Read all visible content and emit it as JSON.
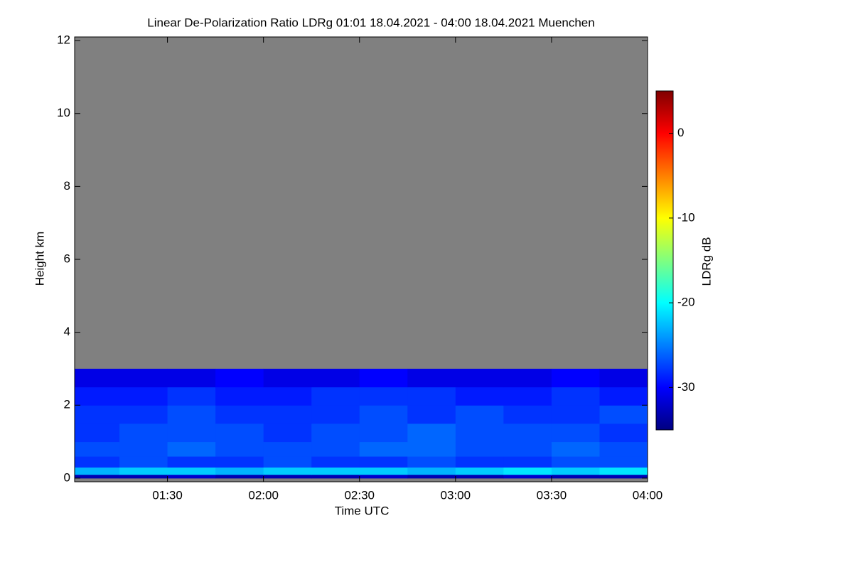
{
  "chart_data": {
    "type": "heatmap",
    "title": "Linear De-Polarization Ratio LDRg   01:01 18.04.2021 - 04:00 18.04.2021 Muenchen",
    "xlabel": "Time UTC",
    "ylabel": "Height km",
    "colorbar_label": "LDRg dB",
    "background": "#808080",
    "xlim": [
      1.0167,
      4.0
    ],
    "xticks": [
      {
        "value": 1.5,
        "label": "01:30"
      },
      {
        "value": 2.0,
        "label": "02:00"
      },
      {
        "value": 2.5,
        "label": "02:30"
      },
      {
        "value": 3.0,
        "label": "03:00"
      },
      {
        "value": 3.5,
        "label": "03:30"
      },
      {
        "value": 4.0,
        "label": "04:00"
      }
    ],
    "ylim": [
      -0.1,
      12.1
    ],
    "yticks": [
      0,
      2,
      4,
      6,
      8,
      10,
      12
    ],
    "clim": [
      -35,
      5
    ],
    "cticks": [
      0,
      -10,
      -20,
      -30
    ],
    "x_edges": [
      1.0167,
      1.25,
      1.5,
      1.75,
      2.0,
      2.25,
      2.5,
      2.75,
      3.0,
      3.25,
      3.5,
      3.75,
      4.0
    ],
    "y_edges": [
      0,
      0.1,
      0.3,
      0.6,
      1.0,
      1.5,
      2.0,
      2.5,
      3.0
    ],
    "z": [
      [
        -33,
        -33,
        -32,
        -33,
        -33,
        -33,
        -32,
        -33,
        -33,
        -32,
        -33,
        -33
      ],
      [
        -23,
        -22,
        -22,
        -23,
        -22,
        -22,
        -22,
        -23,
        -22,
        -21,
        -22,
        -21
      ],
      [
        -28,
        -27,
        -28,
        -28,
        -27,
        -28,
        -28,
        -27,
        -28,
        -28,
        -27,
        -27
      ],
      [
        -27,
        -27,
        -26,
        -27,
        -27,
        -27,
        -26,
        -26,
        -27,
        -27,
        -26,
        -27
      ],
      [
        -28,
        -27,
        -27,
        -27,
        -28,
        -27,
        -27,
        -26,
        -27,
        -27,
        -27,
        -28
      ],
      [
        -28,
        -28,
        -27,
        -28,
        -28,
        -28,
        -27,
        -28,
        -27,
        -28,
        -28,
        -27
      ],
      [
        -29,
        -29,
        -28,
        -29,
        -29,
        -28,
        -28,
        -28,
        -29,
        -29,
        -28,
        -29
      ],
      [
        -31,
        -31,
        -31,
        -30,
        -31,
        -31,
        -30,
        -31,
        -31,
        -31,
        -30,
        -31
      ]
    ]
  }
}
